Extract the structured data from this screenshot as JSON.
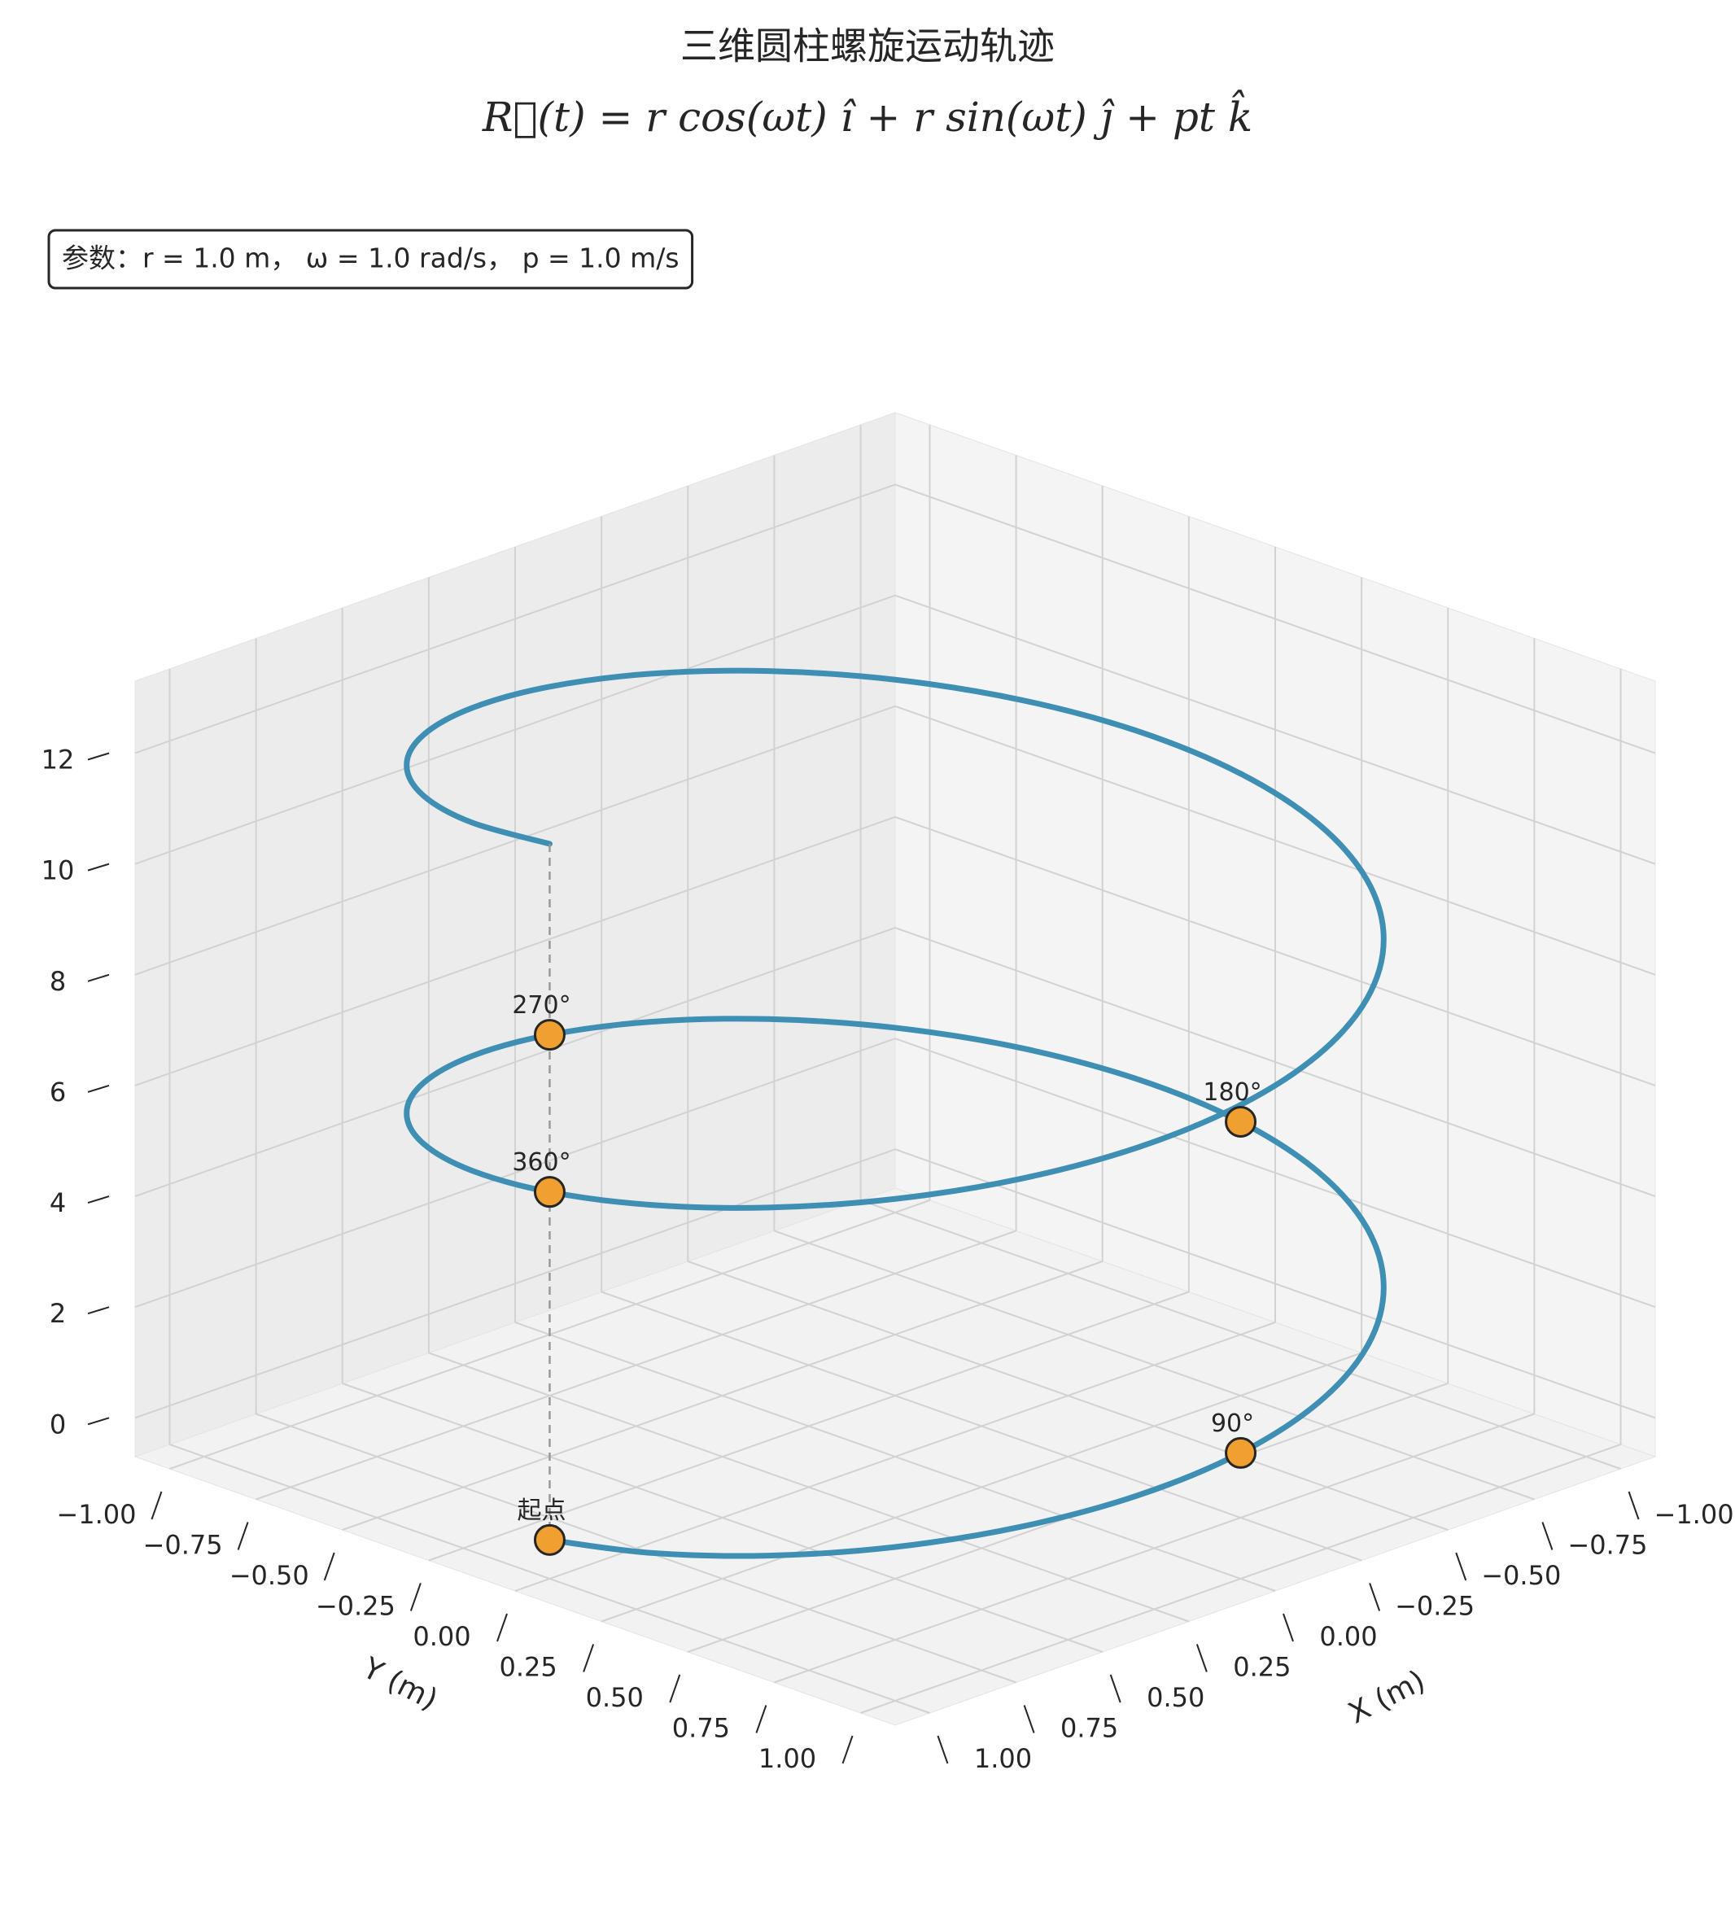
{
  "chart_data": {
    "type": "line3d",
    "title": "三维圆柱螺旋运动轨迹",
    "subtitle": "R⃗(t) = r cos(ωt) î + r sin(ωt) ĵ + pt k̂",
    "annotation": "参数：r = 1.0 m， ω = 1.0 rad/s， p = 1.0 m/s",
    "xlabel": "X (m)",
    "ylabel": "Y (m)",
    "xlim": [
      -1.1,
      1.1
    ],
    "ylim": [
      -1.1,
      1.1
    ],
    "zlim": [
      -0.7,
      13.3
    ],
    "xticks": [
      {
        "value": -1,
        "label": "−1.00"
      },
      {
        "value": -0.75,
        "label": "−0.75"
      },
      {
        "value": -0.5,
        "label": "−0.50"
      },
      {
        "value": -0.25,
        "label": "−0.25"
      },
      {
        "value": 0,
        "label": "0.00"
      },
      0.25,
      {
        "value": 0.5,
        "label": "0.50"
      },
      0.75,
      {
        "value": 1,
        "label": "1.00"
      }
    ],
    "yticks": [
      {
        "value": -1,
        "label": "−1.00"
      },
      {
        "value": -0.75,
        "label": "−0.75"
      },
      {
        "value": -0.5,
        "label": "−0.50"
      },
      {
        "value": -0.25,
        "label": "−0.25"
      },
      {
        "value": 0,
        "label": "0.00"
      },
      0.25,
      {
        "value": 0.5,
        "label": "0.50"
      },
      0.75,
      {
        "value": 1,
        "label": "1.00"
      }
    ],
    "zticks": [
      0,
      2,
      4,
      6,
      8,
      10,
      12
    ],
    "grid": true,
    "series": [
      {
        "color": "#3f8fb4",
        "x": [
          1,
          0.966,
          0.866,
          0.707,
          0.5,
          0.259,
          0,
          -0.259,
          -0.5,
          -0.707,
          -0.866,
          -0.966,
          -1,
          -0.966,
          -0.866,
          -0.707,
          -0.5,
          -0.259,
          0,
          0.259,
          0.5,
          0.707,
          0.866,
          0.966,
          1,
          0.966,
          0.866,
          0.707,
          0.5,
          0.259,
          0,
          -0.259,
          -0.5,
          -0.707,
          -0.866,
          -0.966,
          -1,
          -0.966,
          -0.866,
          -0.707,
          -0.5,
          -0.259,
          0,
          0.259,
          0.5,
          0.707,
          0.866,
          0.966,
          1
        ],
        "y": [
          0,
          0.259,
          0.5,
          0.707,
          0.866,
          0.966,
          1,
          0.966,
          0.866,
          0.707,
          0.5,
          0.259,
          0,
          -0.259,
          -0.5,
          -0.707,
          -0.866,
          -0.966,
          -1,
          -0.966,
          -0.866,
          -0.707,
          -0.5,
          -0.259,
          0,
          0.259,
          0.5,
          0.707,
          0.866,
          0.966,
          1,
          0.966,
          0.866,
          0.707,
          0.5,
          0.259,
          0,
          -0.259,
          -0.5,
          -0.707,
          -0.866,
          -0.966,
          -1,
          -0.966,
          -0.866,
          -0.707,
          -0.5,
          -0.259,
          0
        ],
        "z": [
          0,
          0.262,
          0.524,
          0.785,
          1.047,
          1.309,
          1.571,
          1.833,
          2.094,
          2.356,
          2.618,
          2.88,
          3.142,
          3.403,
          3.665,
          3.927,
          4.189,
          4.451,
          4.712,
          4.974,
          5.236,
          5.498,
          5.76,
          6.021,
          6.283,
          6.545,
          6.807,
          7.069,
          7.33,
          7.592,
          7.854,
          8.116,
          8.378,
          8.639,
          8.901,
          9.163,
          9.425,
          9.687,
          9.948,
          10.21,
          10.472,
          10.734,
          10.996,
          11.257,
          11.519,
          11.781,
          12.043,
          12.305,
          12.566
        ]
      }
    ],
    "marker_color": "#f0a030",
    "markers": [
      {
        "label": "起点",
        "x": 1,
        "y": 0,
        "z": 0
      },
      {
        "label": "90°",
        "x": 0,
        "y": 1,
        "z": 1.571
      },
      {
        "label": "180°",
        "x": -1,
        "y": 0,
        "z": 3.142
      },
      {
        "label": "270°",
        "x": 0,
        "y": -1,
        "z": 4.712
      },
      {
        "label": "360°",
        "x": 1,
        "y": 0,
        "z": 6.283
      }
    ]
  }
}
